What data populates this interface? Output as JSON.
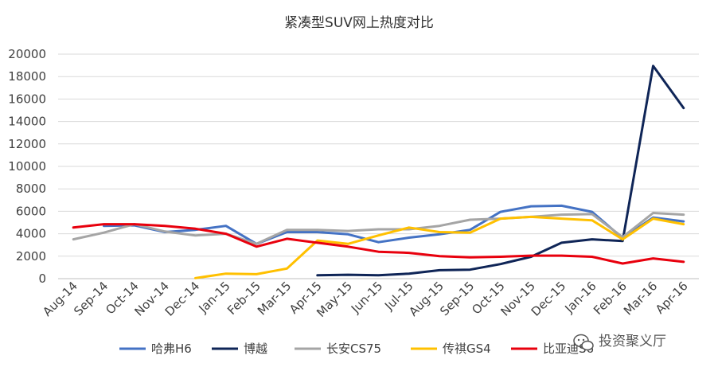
{
  "chart_data": {
    "type": "line",
    "title": "紧凑型SUV网上热度对比",
    "xlabel": "",
    "ylabel": "",
    "ylim": [
      0,
      20000
    ],
    "yticks": [
      0,
      2000,
      4000,
      6000,
      8000,
      10000,
      12000,
      14000,
      16000,
      18000,
      20000
    ],
    "grid": "horizontal",
    "legend_position": "bottom",
    "categories": [
      "Aug-14",
      "Sep-14",
      "Oct-14",
      "Nov-14",
      "Dec-14",
      "Jan-15",
      "Feb-15",
      "Mar-15",
      "Apr-15",
      "May-15",
      "Jun-15",
      "Jul-15",
      "Aug-15",
      "Sep-15",
      "Oct-15",
      "Nov-15",
      "Dec-15",
      "Jan-16",
      "Feb-16",
      "Mar-16",
      "Apr-16"
    ],
    "series": [
      {
        "name": "哈弗H6",
        "color": "#4472C4",
        "values": [
          null,
          4700,
          4750,
          4150,
          4350,
          4700,
          3100,
          4150,
          4150,
          3950,
          3250,
          3650,
          3950,
          4350,
          5950,
          6450,
          6500,
          5950,
          3600,
          5450,
          5100
        ]
      },
      {
        "name": "博越",
        "color": "#0F2557",
        "values": [
          null,
          null,
          null,
          null,
          null,
          null,
          null,
          null,
          300,
          350,
          300,
          450,
          750,
          800,
          1300,
          1950,
          3200,
          3500,
          3350,
          18950,
          15200
        ]
      },
      {
        "name": "长安CS75",
        "color": "#A5A5A5",
        "values": [
          3500,
          4100,
          4850,
          4200,
          3850,
          4000,
          3100,
          4350,
          4350,
          4250,
          4400,
          4400,
          4700,
          5250,
          5350,
          5500,
          5700,
          5750,
          3700,
          5850,
          5700
        ]
      },
      {
        "name": "传祺GS4",
        "color": "#FFC000",
        "values": [
          null,
          null,
          null,
          null,
          50,
          450,
          400,
          900,
          3400,
          3100,
          3850,
          4550,
          4150,
          4100,
          5350,
          5500,
          5350,
          5200,
          3500,
          5350,
          4850
        ]
      },
      {
        "name": "比亚迪S6",
        "color": "#E8000D",
        "values": [
          4550,
          4850,
          4850,
          4700,
          4450,
          4000,
          2850,
          3550,
          3200,
          2850,
          2400,
          2300,
          2000,
          1900,
          1950,
          2050,
          2050,
          1950,
          1350,
          1800,
          1500
        ]
      }
    ]
  },
  "watermark": {
    "text": "投资聚义厅"
  }
}
